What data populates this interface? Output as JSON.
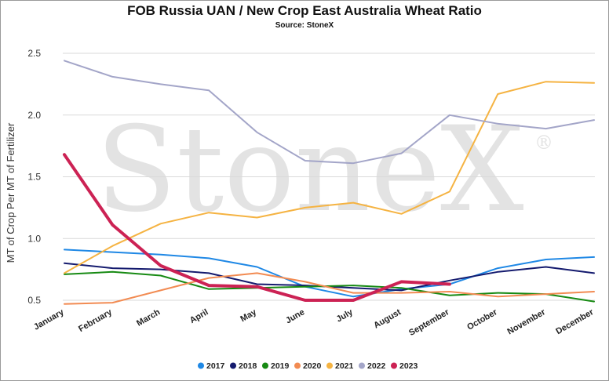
{
  "chart_data": {
    "type": "line",
    "title": "FOB Russia UAN / New Crop East Australia Wheat Ratio",
    "subtitle": "Source: StoneX",
    "ylabel": "MT of Crop Per MT of Fertilizer",
    "xlabel": "",
    "ylim": [
      0.5,
      2.5
    ],
    "yticks": [
      "0.5",
      "1.0",
      "1.5",
      "2.0",
      "2.5"
    ],
    "yticks_values": [
      0.5,
      1.0,
      1.5,
      2.0,
      2.5
    ],
    "grid": "horizontal",
    "legend_position": "bottom",
    "watermark": "StoneX",
    "watermark_mark": "®",
    "categories": [
      "January",
      "February",
      "March",
      "April",
      "May",
      "June",
      "July",
      "August",
      "September",
      "October",
      "November",
      "December"
    ],
    "series": [
      {
        "name": "2017",
        "color": "#1f88e5",
        "width": 2,
        "values": [
          0.91,
          0.89,
          0.87,
          0.84,
          0.77,
          0.61,
          0.53,
          0.59,
          0.63,
          0.76,
          0.83,
          0.85
        ]
      },
      {
        "name": "2018",
        "color": "#141a6e",
        "width": 2,
        "values": [
          0.8,
          0.76,
          0.75,
          0.72,
          0.63,
          0.62,
          0.6,
          0.58,
          0.66,
          0.73,
          0.77,
          0.72
        ]
      },
      {
        "name": "2019",
        "color": "#178a13",
        "width": 2,
        "values": [
          0.71,
          0.73,
          0.7,
          0.59,
          0.6,
          0.61,
          0.62,
          0.6,
          0.54,
          0.56,
          0.55,
          0.49
        ]
      },
      {
        "name": "2020",
        "color": "#f28b52",
        "width": 2,
        "values": [
          0.47,
          0.48,
          0.58,
          0.68,
          0.72,
          0.65,
          0.56,
          0.56,
          0.57,
          0.53,
          0.55,
          0.57
        ]
      },
      {
        "name": "2021",
        "color": "#f5b342",
        "width": 2,
        "values": [
          0.72,
          0.94,
          1.12,
          1.21,
          1.17,
          1.25,
          1.29,
          1.2,
          1.38,
          2.17,
          2.27,
          2.26
        ]
      },
      {
        "name": "2022",
        "color": "#a3a5c8",
        "width": 2,
        "values": [
          2.44,
          2.31,
          2.25,
          2.2,
          1.86,
          1.63,
          1.61,
          1.69,
          2.0,
          1.93,
          1.89,
          1.96
        ]
      },
      {
        "name": "2023",
        "color": "#cc2254",
        "width": 4,
        "values": [
          1.68,
          1.11,
          0.78,
          0.62,
          0.61,
          0.5,
          0.5,
          0.65,
          0.63,
          null,
          null,
          null
        ]
      }
    ]
  }
}
